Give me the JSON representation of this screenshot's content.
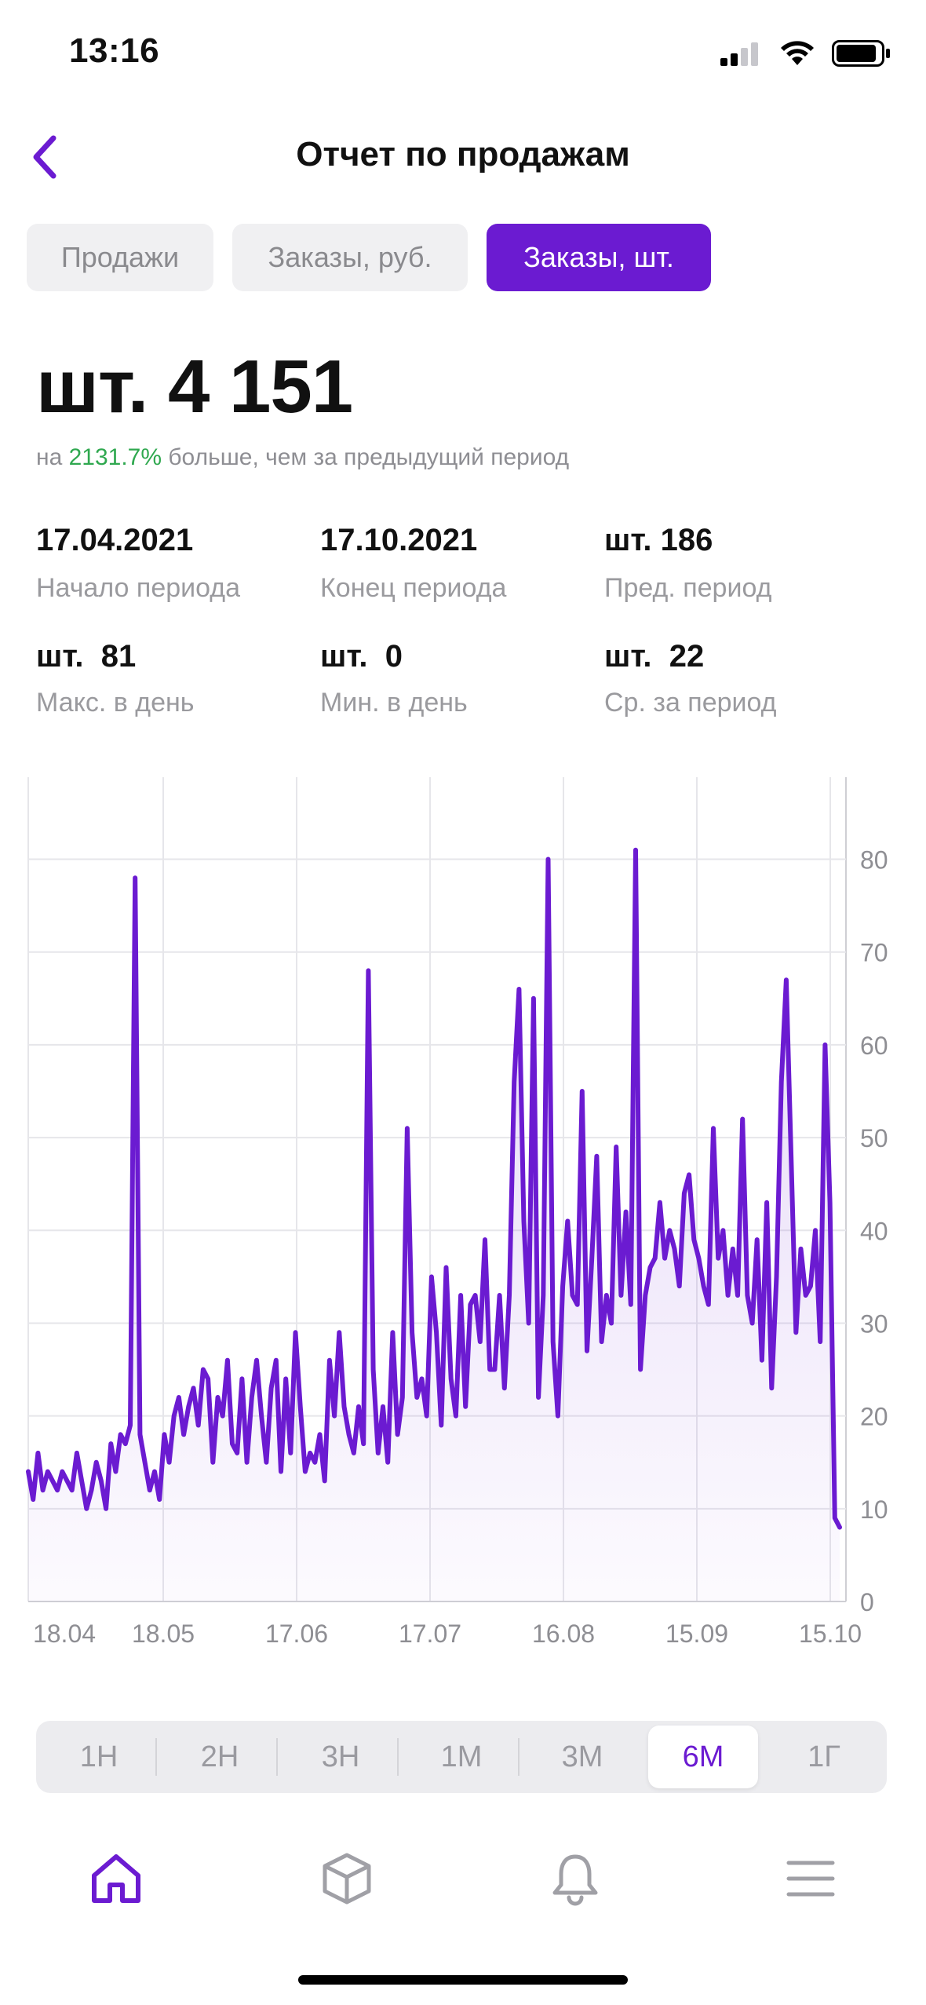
{
  "status_bar": {
    "time": "13:16"
  },
  "header": {
    "title": "Отчет по продажам"
  },
  "tabs": [
    {
      "label": "Продажи",
      "active": false
    },
    {
      "label": "Заказы, руб.",
      "active": false
    },
    {
      "label": "Заказы, шт.",
      "active": true
    }
  ],
  "summary": {
    "total": "шт. 4 151",
    "compare_prefix": "на ",
    "compare_pct": "2131.7%",
    "compare_suffix": " больше, чем за предыдущий период"
  },
  "stats": [
    {
      "value": "17.04.2021",
      "label": "Начало периода"
    },
    {
      "value": "17.10.2021",
      "label": "Конец периода"
    },
    {
      "value": "шт. 186",
      "label": "Пред. период"
    },
    {
      "value": "шт.  81",
      "label": "Макс. в день"
    },
    {
      "value": "шт.  0",
      "label": "Мин. в день"
    },
    {
      "value": "шт.  22",
      "label": "Ср. за период"
    }
  ],
  "chart_data": {
    "type": "area",
    "x_ticks": [
      "18.04",
      "18.05",
      "17.06",
      "17.07",
      "16.08",
      "15.09",
      "15.10"
    ],
    "y_ticks": [
      0,
      10,
      20,
      30,
      40,
      50,
      60,
      70,
      80
    ],
    "ylim": [
      0,
      88
    ],
    "grid": true,
    "y_axis_side": "right",
    "line_color": "#6b1bd1",
    "x_start": "2021-04-17",
    "x_end": "2021-10-17",
    "values": [
      14,
      11,
      16,
      12,
      14,
      13,
      12,
      14,
      13,
      12,
      16,
      13,
      10,
      12,
      15,
      13,
      10,
      17,
      14,
      18,
      17,
      19,
      78,
      18,
      15,
      12,
      14,
      11,
      18,
      15,
      20,
      22,
      18,
      21,
      23,
      19,
      25,
      24,
      15,
      22,
      20,
      26,
      17,
      16,
      24,
      15,
      22,
      26,
      20,
      15,
      23,
      26,
      14,
      24,
      16,
      29,
      21,
      14,
      16,
      15,
      18,
      13,
      26,
      20,
      29,
      21,
      18,
      16,
      21,
      17,
      68,
      25,
      16,
      21,
      15,
      29,
      18,
      22,
      51,
      29,
      22,
      24,
      20,
      35,
      29,
      19,
      36,
      24,
      20,
      33,
      21,
      32,
      33,
      28,
      39,
      25,
      25,
      33,
      23,
      33,
      56,
      66,
      41,
      30,
      65,
      22,
      33,
      80,
      28,
      20,
      34,
      41,
      33,
      32,
      55,
      27,
      37,
      48,
      28,
      33,
      30,
      49,
      33,
      42,
      32,
      81,
      25,
      33,
      36,
      37,
      43,
      37,
      40,
      38,
      34,
      44,
      46,
      39,
      37,
      34,
      32,
      51,
      37,
      40,
      33,
      38,
      33,
      52,
      33,
      30,
      39,
      26,
      43,
      23,
      35,
      56,
      67,
      48,
      29,
      38,
      33,
      34,
      40,
      28,
      60,
      43,
      9,
      8
    ]
  },
  "periods": [
    {
      "label": "1Н",
      "active": false
    },
    {
      "label": "2Н",
      "active": false
    },
    {
      "label": "3Н",
      "active": false
    },
    {
      "label": "1М",
      "active": false
    },
    {
      "label": "3М",
      "active": false
    },
    {
      "label": "6М",
      "active": true
    },
    {
      "label": "1Г",
      "active": false
    }
  ],
  "bottom_nav": [
    {
      "icon": "home-icon",
      "active": true
    },
    {
      "icon": "box-icon",
      "active": false
    },
    {
      "icon": "bell-icon",
      "active": false
    },
    {
      "icon": "menu-icon",
      "active": false
    }
  ],
  "colors": {
    "accent": "#6b1bd1",
    "positive": "#2fa84f",
    "muted": "#9a9a9e"
  }
}
